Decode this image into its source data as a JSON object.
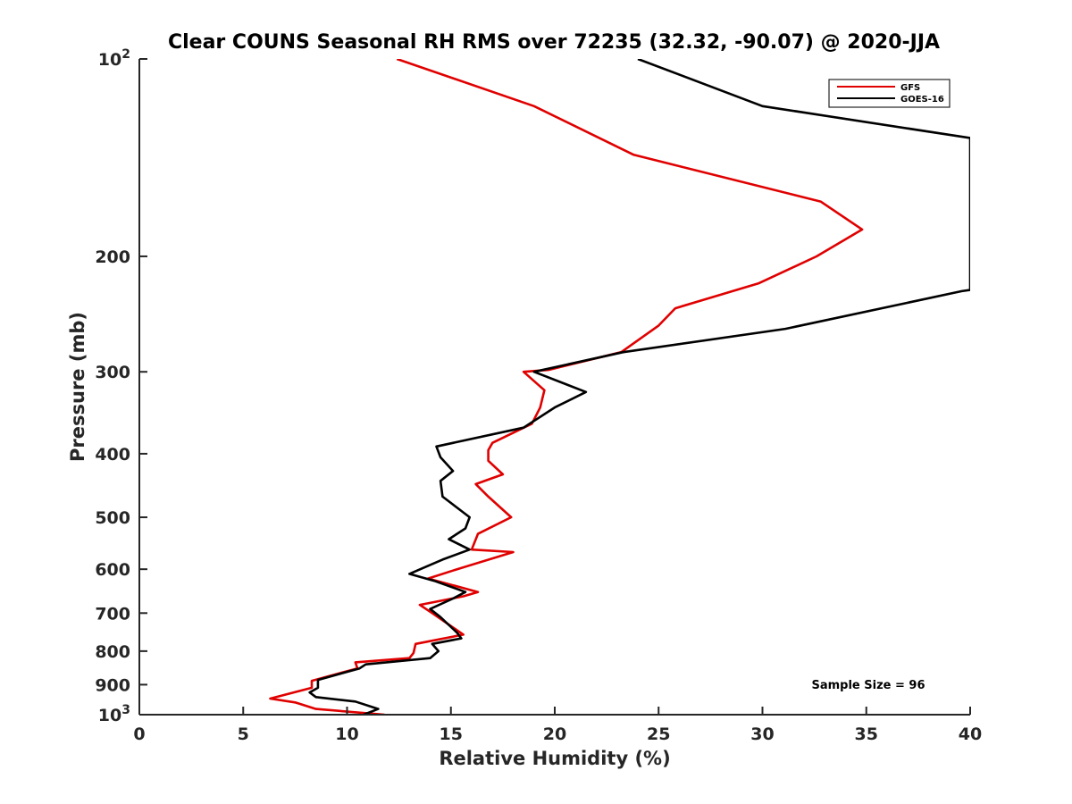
{
  "chart_data": {
    "type": "line",
    "title": "Clear COUNS Seasonal RH RMS over 72235 (32.32, -90.07) @ 2020-JJA",
    "xlabel": "Relative Humidity (%)",
    "ylabel": "Pressure (mb)",
    "xlim": [
      0,
      40
    ],
    "ylim": [
      100,
      1000
    ],
    "yscale": "log",
    "yreversed": true,
    "grid": false,
    "legend_position": "top-right",
    "x_ticks": [
      0,
      5,
      10,
      15,
      20,
      25,
      30,
      35,
      40
    ],
    "x_tick_labels": [
      "0",
      "5",
      "10",
      "15",
      "20",
      "25",
      "30",
      "35",
      "40"
    ],
    "y_ticks": [
      100,
      200,
      300,
      400,
      500,
      600,
      700,
      800,
      900,
      1000
    ],
    "y_tick_labels": [
      {
        "base": "10",
        "sup": "2"
      },
      {
        "base": "200"
      },
      {
        "base": "300"
      },
      {
        "base": "400"
      },
      {
        "base": "500"
      },
      {
        "base": "600"
      },
      {
        "base": "700"
      },
      {
        "base": "800"
      },
      {
        "base": "900"
      },
      {
        "base": "10",
        "sup": "3"
      }
    ],
    "annotation": "Sample Size = 96",
    "series": [
      {
        "name": "GFS",
        "color": "#e00000",
        "points": [
          [
            12.4,
            100
          ],
          [
            19.0,
            118
          ],
          [
            23.8,
            140
          ],
          [
            32.8,
            165
          ],
          [
            34.8,
            182
          ],
          [
            32.6,
            200
          ],
          [
            29.8,
            220
          ],
          [
            25.8,
            240
          ],
          [
            25.0,
            255
          ],
          [
            23.2,
            280
          ],
          [
            19.7,
            298
          ],
          [
            18.5,
            300
          ],
          [
            19.5,
            320
          ],
          [
            19.3,
            340
          ],
          [
            18.9,
            360
          ],
          [
            17.0,
            385
          ],
          [
            16.8,
            395
          ],
          [
            16.8,
            410
          ],
          [
            17.5,
            430
          ],
          [
            16.2,
            445
          ],
          [
            16.8,
            465
          ],
          [
            17.9,
            500
          ],
          [
            16.3,
            530
          ],
          [
            16.0,
            560
          ],
          [
            18.0,
            565
          ],
          [
            15.3,
            600
          ],
          [
            13.9,
            620
          ],
          [
            16.3,
            650
          ],
          [
            15.6,
            660
          ],
          [
            13.5,
            680
          ],
          [
            14.1,
            700
          ],
          [
            15.2,
            740
          ],
          [
            15.6,
            755
          ],
          [
            13.3,
            780
          ],
          [
            13.2,
            805
          ],
          [
            13.0,
            820
          ],
          [
            10.4,
            832
          ],
          [
            10.5,
            850
          ],
          [
            8.3,
            888
          ],
          [
            8.3,
            910
          ],
          [
            6.3,
            945
          ],
          [
            7.5,
            958
          ],
          [
            8.5,
            980
          ],
          [
            11.8,
            1000
          ]
        ]
      },
      {
        "name": "GOES-16",
        "color": "#000000",
        "points": [
          [
            24.0,
            100
          ],
          [
            30.0,
            118
          ],
          [
            40.0,
            132
          ],
          [
            40.0,
            225
          ],
          [
            39.6,
            226
          ],
          [
            31.1,
            258
          ],
          [
            23.3,
            280
          ],
          [
            19.0,
            300
          ],
          [
            21.5,
            322
          ],
          [
            20.0,
            340
          ],
          [
            18.5,
            365
          ],
          [
            14.3,
            390
          ],
          [
            14.5,
            405
          ],
          [
            15.1,
            425
          ],
          [
            14.5,
            440
          ],
          [
            14.6,
            465
          ],
          [
            15.9,
            500
          ],
          [
            15.7,
            520
          ],
          [
            14.9,
            540
          ],
          [
            15.9,
            560
          ],
          [
            14.6,
            580
          ],
          [
            13.0,
            610
          ],
          [
            14.2,
            625
          ],
          [
            15.7,
            650
          ],
          [
            15.1,
            665
          ],
          [
            14.0,
            690
          ],
          [
            14.5,
            710
          ],
          [
            15.3,
            750
          ],
          [
            15.5,
            765
          ],
          [
            14.1,
            780
          ],
          [
            14.4,
            800
          ],
          [
            14.0,
            820
          ],
          [
            10.9,
            838
          ],
          [
            10.6,
            850
          ],
          [
            8.6,
            885
          ],
          [
            8.6,
            910
          ],
          [
            8.2,
            925
          ],
          [
            8.5,
            940
          ],
          [
            10.4,
            955
          ],
          [
            11.5,
            980
          ],
          [
            10.8,
            1000
          ]
        ]
      }
    ]
  }
}
